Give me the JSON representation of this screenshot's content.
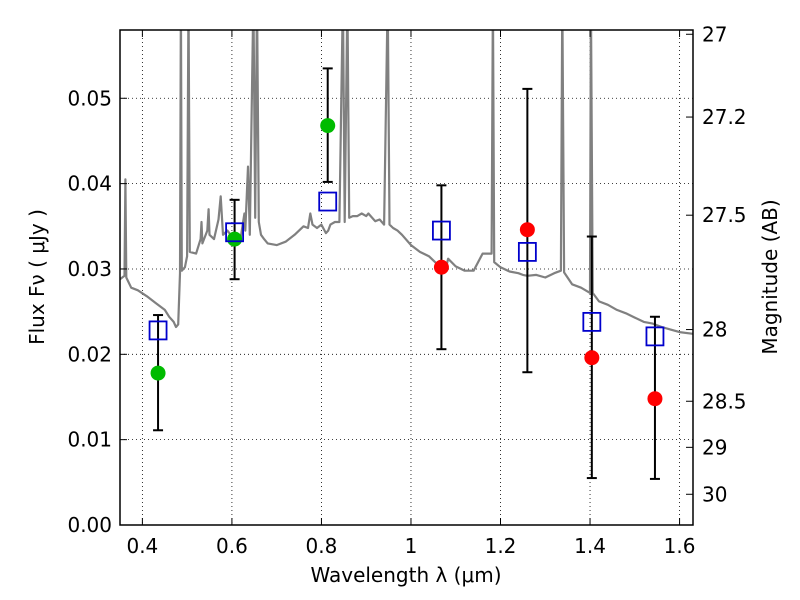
{
  "chart_data": {
    "type": "scatter",
    "title": "",
    "xlabel": "Wavelength  λ (μm)",
    "ylabel": "Flux  Fν  ( μJy )",
    "ylabel_right": "Magnitude (AB)",
    "xlim": [
      0.35,
      1.63
    ],
    "ylim": [
      0.0,
      0.058
    ],
    "grid": true,
    "x_ticks": [
      0.4,
      0.6,
      0.8,
      1.0,
      1.2,
      1.4,
      1.6
    ],
    "x_tick_labels": [
      "0.4",
      "0.6",
      "0.8",
      "1",
      "1.2",
      "1.4",
      "1.6"
    ],
    "y_ticks": [
      0.0,
      0.01,
      0.02,
      0.03,
      0.04,
      0.05
    ],
    "y_tick_labels": [
      "0.00",
      "0.01",
      "0.02",
      "0.03",
      "0.04",
      "0.05"
    ],
    "right_ticks": [
      {
        "label": "27",
        "flux": 0.0575
      },
      {
        "label": "27.2",
        "flux": 0.0478
      },
      {
        "label": "27.5",
        "flux": 0.0363
      },
      {
        "label": "28",
        "flux": 0.0229
      },
      {
        "label": "28.5",
        "flux": 0.0145
      },
      {
        "label": "29",
        "flux": 0.0091
      },
      {
        "label": "30",
        "flux": 0.0036
      }
    ],
    "colors": {
      "spectrum": "#808080",
      "green": "#00bb00",
      "red": "#ff0000",
      "model": "#0000cc",
      "errorbar": "#000000"
    },
    "series": [
      {
        "name": "spectrum",
        "kind": "line",
        "points": [
          [
            0.35,
            0.0288
          ],
          [
            0.36,
            0.0292
          ],
          [
            0.362,
            0.0405
          ],
          [
            0.364,
            0.029
          ],
          [
            0.375,
            0.0278
          ],
          [
            0.39,
            0.0275
          ],
          [
            0.41,
            0.0268
          ],
          [
            0.43,
            0.026
          ],
          [
            0.45,
            0.0252
          ],
          [
            0.46,
            0.0244
          ],
          [
            0.47,
            0.0238
          ],
          [
            0.475,
            0.0232
          ],
          [
            0.48,
            0.0235
          ],
          [
            0.484,
            0.0295
          ],
          [
            0.486,
            0.062
          ],
          [
            0.488,
            0.0298
          ],
          [
            0.495,
            0.0302
          ],
          [
            0.5,
            0.0315
          ],
          [
            0.503,
            0.062
          ],
          [
            0.506,
            0.032
          ],
          [
            0.52,
            0.0318
          ],
          [
            0.53,
            0.0335
          ],
          [
            0.532,
            0.0355
          ],
          [
            0.534,
            0.033
          ],
          [
            0.545,
            0.0345
          ],
          [
            0.548,
            0.037
          ],
          [
            0.55,
            0.034
          ],
          [
            0.56,
            0.0335
          ],
          [
            0.57,
            0.0358
          ],
          [
            0.575,
            0.0385
          ],
          [
            0.58,
            0.034
          ],
          [
            0.59,
            0.0345
          ],
          [
            0.6,
            0.0338
          ],
          [
            0.62,
            0.0338
          ],
          [
            0.628,
            0.0365
          ],
          [
            0.63,
            0.0345
          ],
          [
            0.636,
            0.042
          ],
          [
            0.64,
            0.034
          ],
          [
            0.648,
            0.062
          ],
          [
            0.652,
            0.036
          ],
          [
            0.656,
            0.062
          ],
          [
            0.66,
            0.0355
          ],
          [
            0.665,
            0.034
          ],
          [
            0.672,
            0.0335
          ],
          [
            0.68,
            0.033
          ],
          [
            0.7,
            0.0328
          ],
          [
            0.72,
            0.0332
          ],
          [
            0.74,
            0.034
          ],
          [
            0.76,
            0.035
          ],
          [
            0.77,
            0.0348
          ],
          [
            0.775,
            0.0365
          ],
          [
            0.78,
            0.0352
          ],
          [
            0.79,
            0.0348
          ],
          [
            0.8,
            0.0352
          ],
          [
            0.81,
            0.0342
          ],
          [
            0.815,
            0.0345
          ],
          [
            0.82,
            0.0352
          ],
          [
            0.83,
            0.0355
          ],
          [
            0.84,
            0.0355
          ],
          [
            0.848,
            0.062
          ],
          [
            0.852,
            0.0355
          ],
          [
            0.858,
            0.062
          ],
          [
            0.862,
            0.036
          ],
          [
            0.87,
            0.0362
          ],
          [
            0.88,
            0.0362
          ],
          [
            0.89,
            0.0365
          ],
          [
            0.9,
            0.0362
          ],
          [
            0.905,
            0.0365
          ],
          [
            0.91,
            0.0362
          ],
          [
            0.92,
            0.0356
          ],
          [
            0.93,
            0.0358
          ],
          [
            0.94,
            0.0352
          ],
          [
            0.948,
            0.062
          ],
          [
            0.952,
            0.0352
          ],
          [
            0.96,
            0.0348
          ],
          [
            0.97,
            0.0345
          ],
          [
            0.98,
            0.034
          ],
          [
            1.0,
            0.0328
          ],
          [
            1.02,
            0.032
          ],
          [
            1.04,
            0.0315
          ],
          [
            1.06,
            0.0305
          ],
          [
            1.08,
            0.0305
          ],
          [
            1.083,
            0.0312
          ],
          [
            1.1,
            0.0303
          ],
          [
            1.12,
            0.0298
          ],
          [
            1.14,
            0.0298
          ],
          [
            1.16,
            0.0318
          ],
          [
            1.18,
            0.0318
          ],
          [
            1.183,
            0.062
          ],
          [
            1.186,
            0.0308
          ],
          [
            1.2,
            0.0302
          ],
          [
            1.22,
            0.0297
          ],
          [
            1.24,
            0.0295
          ],
          [
            1.25,
            0.0293
          ],
          [
            1.26,
            0.0292
          ],
          [
            1.28,
            0.0293
          ],
          [
            1.3,
            0.029
          ],
          [
            1.32,
            0.0295
          ],
          [
            1.335,
            0.0298
          ],
          [
            1.338,
            0.062
          ],
          [
            1.342,
            0.0296
          ],
          [
            1.36,
            0.0282
          ],
          [
            1.38,
            0.0278
          ],
          [
            1.4,
            0.0272
          ],
          [
            1.402,
            0.062
          ],
          [
            1.406,
            0.0272
          ],
          [
            1.42,
            0.0262
          ],
          [
            1.44,
            0.0258
          ],
          [
            1.46,
            0.0252
          ],
          [
            1.48,
            0.0248
          ],
          [
            1.5,
            0.0243
          ],
          [
            1.52,
            0.0238
          ],
          [
            1.54,
            0.0236
          ],
          [
            1.56,
            0.0232
          ],
          [
            1.58,
            0.0229
          ],
          [
            1.6,
            0.0226
          ],
          [
            1.63,
            0.0224
          ]
        ]
      },
      {
        "name": "observed (green)",
        "kind": "points",
        "points": [
          {
            "x": 0.435,
            "y": 0.0178,
            "err_lo": 0.0111,
            "err_hi": 0.0246
          },
          {
            "x": 0.606,
            "y": 0.0335,
            "err_lo": 0.0288,
            "err_hi": 0.0381
          },
          {
            "x": 0.814,
            "y": 0.0468,
            "err_lo": 0.0402,
            "err_hi": 0.0535
          }
        ]
      },
      {
        "name": "observed (red)",
        "kind": "points",
        "points": [
          {
            "x": 1.068,
            "y": 0.0302,
            "err_lo": 0.0206,
            "err_hi": 0.0398
          },
          {
            "x": 1.26,
            "y": 0.0346,
            "err_lo": 0.0179,
            "err_hi": 0.0511
          },
          {
            "x": 1.404,
            "y": 0.0196,
            "err_lo": 0.0055,
            "err_hi": 0.0338
          },
          {
            "x": 1.545,
            "y": 0.0148,
            "err_lo": 0.0054,
            "err_hi": 0.0244
          }
        ]
      },
      {
        "name": "model photometry",
        "kind": "squares",
        "points": [
          {
            "x": 0.435,
            "y": 0.0228
          },
          {
            "x": 0.606,
            "y": 0.0343
          },
          {
            "x": 0.814,
            "y": 0.0379
          },
          {
            "x": 1.068,
            "y": 0.0345
          },
          {
            "x": 1.26,
            "y": 0.032
          },
          {
            "x": 1.404,
            "y": 0.0238
          },
          {
            "x": 1.545,
            "y": 0.0221
          }
        ]
      }
    ]
  }
}
